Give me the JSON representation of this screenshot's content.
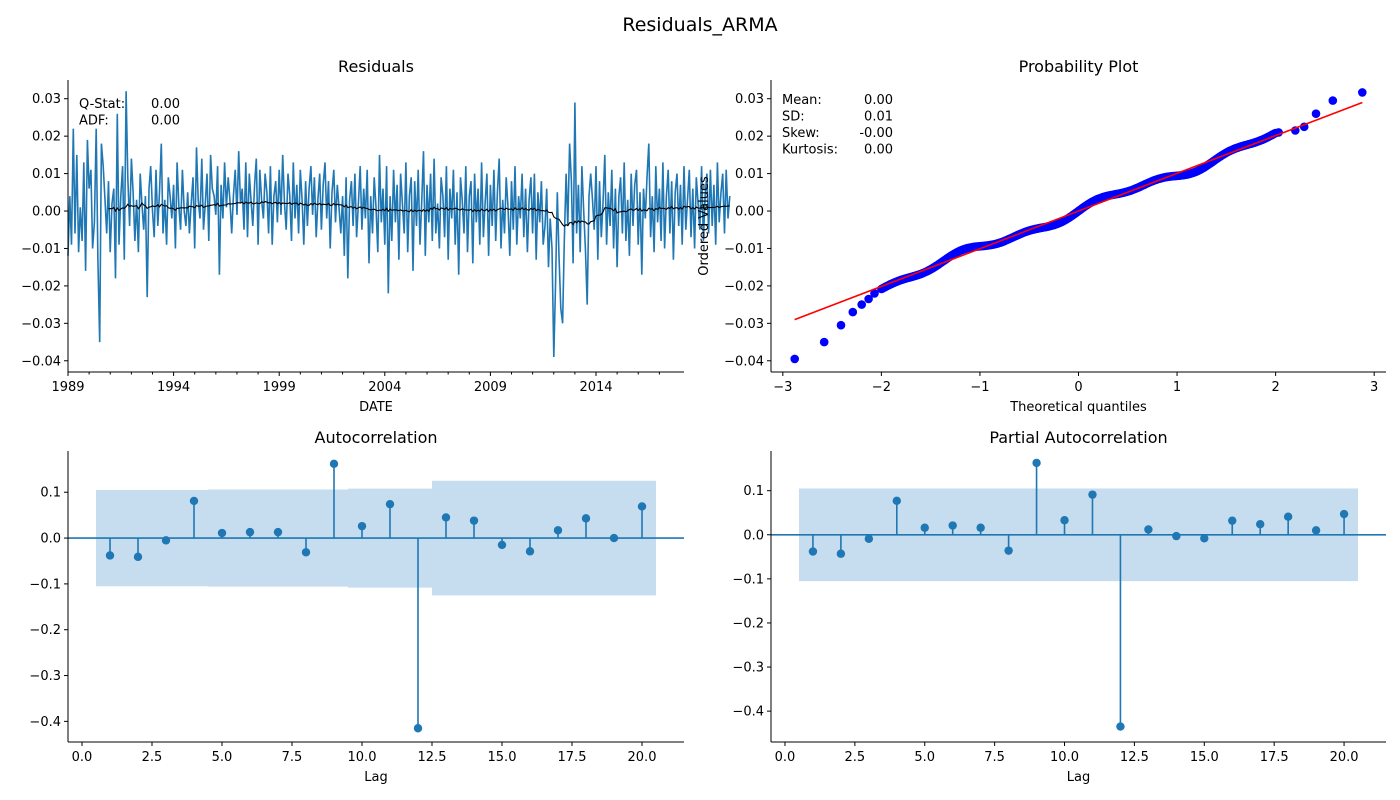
{
  "figure": {
    "title": "Residuals_ARMA"
  },
  "colors": {
    "series": "#1f77b4",
    "rolling": "#000000",
    "qq_points": "#0000ff",
    "qq_line": "#ff0000",
    "band": "#c6dcef"
  },
  "chart_data": [
    {
      "type": "line",
      "title": "Residuals",
      "xlabel": "DATE",
      "ylabel": "",
      "xlim": [
        "1989-01",
        "2018-03"
      ],
      "ylim": [
        -0.043,
        0.035
      ],
      "xticks": [
        "1989",
        "1994",
        "1999",
        "2004",
        "2009",
        "2014"
      ],
      "yticks": [
        "−0.04",
        "−0.03",
        "−0.02",
        "−0.01",
        "0.00",
        "0.01",
        "0.02",
        "0.03"
      ],
      "grid": false,
      "annotations": [
        {
          "label": "Q-Stat:",
          "value": "0.00"
        },
        {
          "label": "ADF:",
          "value": "0.00"
        }
      ],
      "series": [
        {
          "x_start": "1989-01",
          "freq": "monthly",
          "values": [
            -0.012,
            0.004,
            -0.009,
            0.022,
            -0.006,
            0.015,
            -0.011,
            0.001,
            -0.008,
            0.013,
            -0.016,
            0.019,
            0.006,
            0.011,
            -0.01,
            -0.003,
            0.022,
            -0.013,
            -0.035,
            0.018,
            0.012,
            0.003,
            -0.006,
            0.008,
            -0.011,
            0.002,
            0.006,
            -0.018,
            0.026,
            -0.009,
            0.004,
            0.012,
            -0.013,
            0.032,
            0.009,
            -0.004,
            0.014,
            0.005,
            -0.008,
            0.003,
            -0.011,
            0.01,
            0.002,
            -0.005,
            0.004,
            -0.023,
            0.006,
            0.012,
            0.0,
            -0.007,
            0.011,
            -0.004,
            0.005,
            0.018,
            -0.006,
            0.003,
            -0.009,
            0.009,
            0.004,
            -0.002,
            0.007,
            -0.01,
            0.013,
            0.001,
            -0.005,
            0.011,
            0.0,
            -0.004,
            0.005,
            -0.006,
            0.002,
            0.009,
            -0.01,
            0.017,
            0.003,
            -0.002,
            0.014,
            -0.005,
            0.002,
            0.01,
            -0.008,
            0.015,
            0.006,
            0.004,
            -0.001,
            0.012,
            -0.017,
            0.007,
            -0.002,
            0.013,
            0.001,
            0.009,
            0.003,
            -0.006,
            0.004,
            0.011,
            -0.001,
            0.016,
            0.002,
            0.006,
            -0.005,
            0.013,
            -0.007,
            0.01,
            0.003,
            -0.004,
            0.007,
            0.014,
            -0.009,
            0.011,
            0.003,
            -0.002,
            0.01,
            0.005,
            -0.006,
            0.012,
            -0.009,
            0.004,
            0.008,
            -0.003,
            0.011,
            -0.001,
            0.015,
            0.002,
            -0.005,
            0.01,
            0.004,
            -0.008,
            0.013,
            -0.002,
            0.007,
            -0.006,
            0.011,
            0.003,
            -0.009,
            0.008,
            -0.004,
            0.006,
            0.012,
            -0.001,
            0.009,
            -0.007,
            0.003,
            0.01,
            -0.005,
            0.007,
            0.013,
            -0.002,
            0.008,
            -0.01,
            0.005,
            0.011,
            -0.003,
            0.007,
            0.001,
            -0.006,
            0.004,
            -0.012,
            0.009,
            -0.018,
            0.003,
            0.008,
            -0.004,
            0.01,
            -0.007,
            0.002,
            0.012,
            -0.005,
            0.006,
            -0.002,
            0.011,
            -0.014,
            0.004,
            -0.006,
            0.009,
            0.001,
            -0.011,
            0.015,
            -0.003,
            0.006,
            -0.009,
            0.012,
            -0.022,
            0.004,
            -0.008,
            0.011,
            -0.003,
            0.007,
            -0.013,
            0.01,
            0.002,
            -0.006,
            0.013,
            -0.011,
            0.004,
            0.009,
            -0.016,
            0.008,
            -0.004,
            0.011,
            -0.009,
            0.003,
            0.016,
            -0.012,
            0.007,
            -0.003,
            0.01,
            -0.008,
            0.014,
            -0.006,
            0.002,
            -0.01,
            0.009,
            0.004,
            -0.007,
            0.012,
            -0.013,
            0.006,
            -0.002,
            0.011,
            -0.009,
            0.005,
            -0.017,
            0.009,
            0.003,
            -0.006,
            0.012,
            -0.011,
            0.004,
            0.008,
            -0.014,
            0.01,
            -0.003,
            0.006,
            -0.009,
            0.013,
            -0.007,
            0.002,
            0.01,
            -0.012,
            0.007,
            -0.004,
            0.011,
            -0.008,
            0.005,
            0.014,
            -0.01,
            0.003,
            -0.006,
            0.009,
            0.001,
            -0.012,
            0.008,
            -0.005,
            0.012,
            -0.009,
            0.004,
            -0.002,
            0.01,
            -0.007,
            0.006,
            -0.011,
            0.003,
            0.009,
            -0.006,
            0.01,
            -0.013,
            0.005,
            -0.003,
            0.008,
            -0.009,
            -0.004,
            0.006,
            -0.015,
            -0.002,
            -0.01,
            -0.039,
            -0.02,
            0.005,
            -0.012,
            -0.026,
            -0.03,
            -0.008,
            0.01,
            -0.004,
            0.018,
            0.008,
            -0.014,
            0.029,
            -0.006,
            0.007,
            -0.011,
            0.012,
            0.0,
            -0.01,
            -0.025,
            0.004,
            0.01,
            0.003,
            -0.005,
            0.012,
            -0.013,
            0.008,
            -0.007,
            0.002,
            0.015,
            -0.009,
            0.005,
            -0.004,
            0.011,
            -0.01,
            0.006,
            -0.015,
            0.004,
            0.009,
            -0.006,
            0.013,
            -0.008,
            0.003,
            -0.012,
            0.01,
            -0.004,
            0.007,
            0.011,
            -0.009,
            0.005,
            -0.017,
            0.006,
            -0.002,
            0.009,
            0.018,
            -0.007,
            0.004,
            -0.011,
            0.012,
            -0.003,
            0.006,
            -0.008,
            0.013,
            -0.01,
            0.004,
            0.011,
            -0.006,
            0.008,
            -0.013,
            0.005,
            0.01,
            -0.004,
            0.007,
            -0.009,
            0.012,
            -0.005,
            0.003,
            0.011,
            -0.007,
            0.006,
            -0.01,
            0.009,
            0.002,
            -0.005,
            0.012,
            -0.008,
            0.004,
            0.01,
            -0.006,
            0.011,
            -0.004,
            0.007,
            -0.009,
            0.013,
            -0.003,
            0.005,
            0.01,
            -0.006,
            0.011,
            -0.002,
            0.004
          ]
        },
        {
          "name": "rolling mean",
          "window": 24
        }
      ]
    },
    {
      "type": "scatter",
      "title": "Probability Plot",
      "xlabel": "Theoretical quantiles",
      "ylabel": "Ordered Values",
      "xlim": [
        -3.12,
        3.12
      ],
      "ylim": [
        -0.043,
        0.035
      ],
      "xticks": [
        "−3",
        "−2",
        "−1",
        "0",
        "1",
        "2",
        "3"
      ],
      "yticks": [
        "−0.04",
        "−0.03",
        "−0.02",
        "−0.01",
        "0.00",
        "0.01",
        "0.02",
        "0.03"
      ],
      "annotations": [
        {
          "label": "Mean:",
          "value": "0.00"
        },
        {
          "label": "SD:",
          "value": "0.01"
        },
        {
          "label": "Skew:",
          "value": "-0.00"
        },
        {
          "label": "Kurtosis:",
          "value": "0.00"
        }
      ],
      "fit_line": {
        "x": [
          -2.88,
          2.88
        ],
        "y": [
          -0.029,
          0.029
        ]
      },
      "outliers": [
        {
          "x": -2.88,
          "y": -0.0395
        },
        {
          "x": -2.58,
          "y": -0.035
        },
        {
          "x": -2.41,
          "y": -0.0305
        },
        {
          "x": -2.29,
          "y": -0.027
        },
        {
          "x": -2.2,
          "y": -0.025
        },
        {
          "x": -2.13,
          "y": -0.0235
        },
        {
          "x": -2.07,
          "y": -0.022
        },
        {
          "x": 2.03,
          "y": 0.021
        },
        {
          "x": 2.2,
          "y": 0.0215
        },
        {
          "x": 2.29,
          "y": 0.0225
        },
        {
          "x": 2.41,
          "y": 0.026
        },
        {
          "x": 2.58,
          "y": 0.0295
        },
        {
          "x": 2.88,
          "y": 0.0317
        }
      ],
      "n_points": 350
    },
    {
      "type": "bar",
      "title": "Autocorrelation",
      "xlabel": "Lag",
      "ylabel": "",
      "xlim": [
        -0.5,
        21.5
      ],
      "ylim": [
        -0.445,
        0.19
      ],
      "xticks": [
        "0.0",
        "2.5",
        "5.0",
        "7.5",
        "10.0",
        "12.5",
        "15.0",
        "17.5",
        "20.0"
      ],
      "yticks": [
        "−0.4",
        "−0.3",
        "−0.2",
        "−0.1",
        "0.0",
        "0.1"
      ],
      "lags": [
        1,
        2,
        3,
        4,
        5,
        6,
        7,
        8,
        9,
        10,
        11,
        12,
        13,
        14,
        15,
        16,
        17,
        18,
        19,
        20
      ],
      "values": [
        -0.038,
        -0.041,
        -0.005,
        0.081,
        0.011,
        0.013,
        0.013,
        -0.031,
        0.162,
        0.026,
        0.074,
        -0.415,
        0.045,
        0.038,
        -0.015,
        -0.029,
        0.017,
        0.043,
        0.0,
        0.069
      ],
      "confint": [
        0.105,
        0.105,
        0.105,
        0.105,
        0.106,
        0.106,
        0.106,
        0.106,
        0.106,
        0.108,
        0.108,
        0.108,
        0.125,
        0.125,
        0.125,
        0.125,
        0.125,
        0.125,
        0.125,
        0.125
      ]
    },
    {
      "type": "bar",
      "title": "Partial Autocorrelation",
      "xlabel": "Lag",
      "ylabel": "",
      "xlim": [
        -0.5,
        21.5
      ],
      "ylim": [
        -0.47,
        0.19
      ],
      "xticks": [
        "0.0",
        "2.5",
        "5.0",
        "7.5",
        "10.0",
        "12.5",
        "15.0",
        "17.5",
        "20.0"
      ],
      "yticks": [
        "−0.4",
        "−0.3",
        "−0.2",
        "−0.1",
        "0.0",
        "0.1"
      ],
      "lags": [
        1,
        2,
        3,
        4,
        5,
        6,
        7,
        8,
        9,
        10,
        11,
        12,
        13,
        14,
        15,
        16,
        17,
        18,
        19,
        20
      ],
      "values": [
        -0.038,
        -0.043,
        -0.009,
        0.077,
        0.016,
        0.021,
        0.016,
        -0.036,
        0.163,
        0.033,
        0.091,
        -0.435,
        0.012,
        -0.003,
        -0.008,
        0.032,
        0.024,
        0.041,
        0.01,
        0.047
      ],
      "confint": [
        0.105,
        0.105,
        0.105,
        0.105,
        0.105,
        0.105,
        0.105,
        0.105,
        0.105,
        0.105,
        0.105,
        0.105,
        0.105,
        0.105,
        0.105,
        0.105,
        0.105,
        0.105,
        0.105,
        0.105
      ]
    }
  ]
}
